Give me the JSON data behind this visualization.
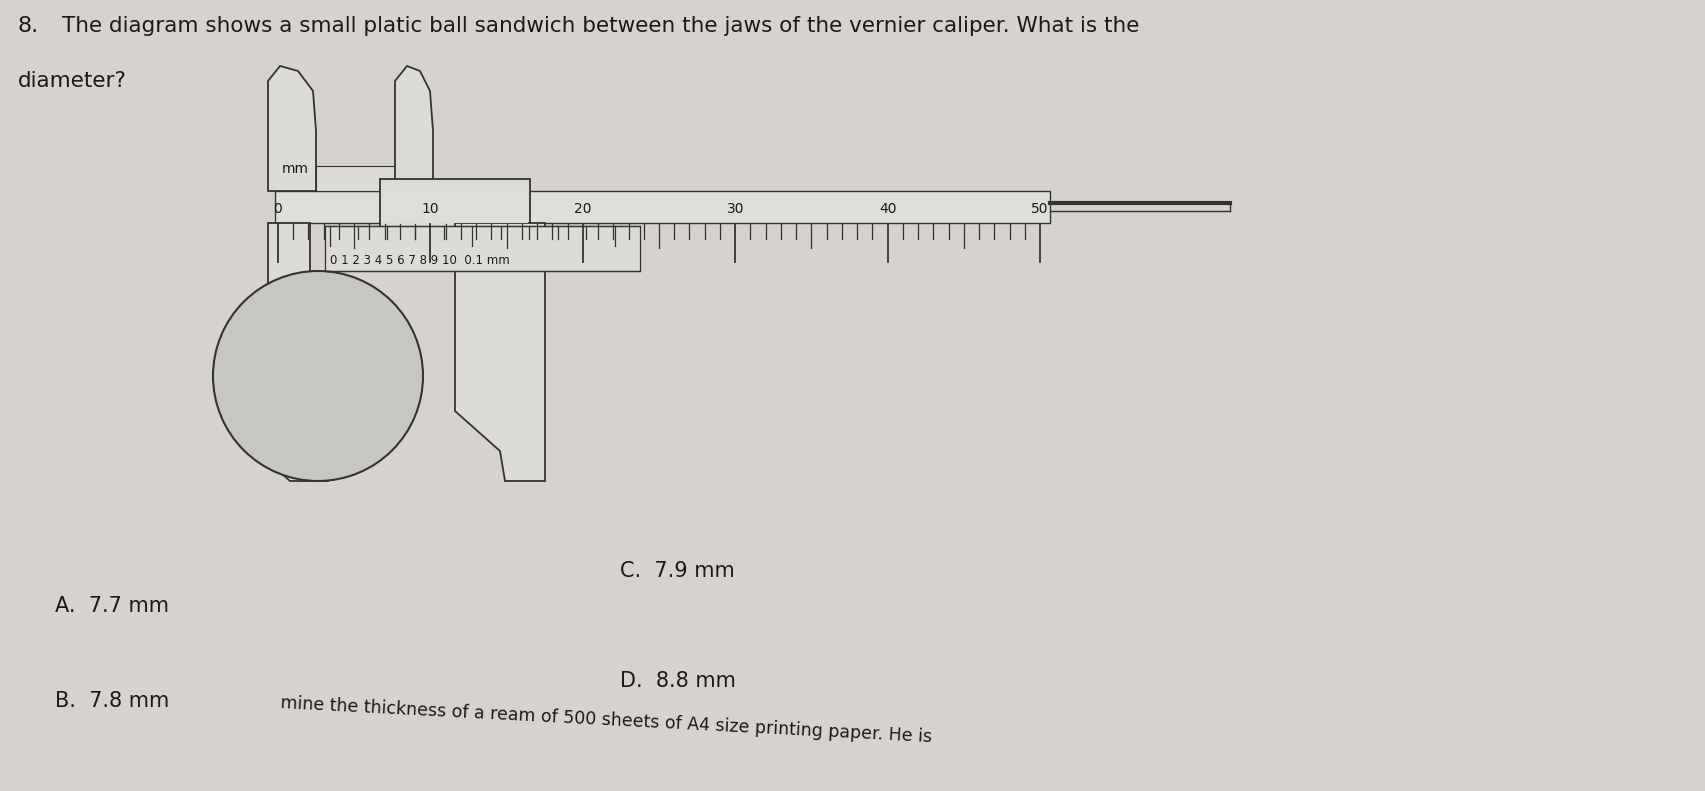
{
  "background_color": "#d6d2cd",
  "question_number": "8.",
  "question_text": "The diagram shows a small platic ball sandwich between the jaws of the vernier caliper. What is the",
  "question_text2": "diameter?",
  "answer_A": "A.  7.7 mm",
  "answer_B": "B.  7.8 mm",
  "answer_C": "C.  7.9 mm",
  "answer_D": "D.  8.8 mm",
  "bottom_text": "mine the thickness of a ream of 500 sheets of A4 size printing paper. He is",
  "main_scale_label": "mm",
  "main_scale_ticks": [
    0,
    10,
    20,
    30,
    40,
    50
  ],
  "vernier_scale_label": "0 1 2 3 4 5 6 7 8 9 10  0.1 mm",
  "text_color": "#1a1a1a",
  "caliper_color": "#333333",
  "scale_color": "#1a1a1a"
}
